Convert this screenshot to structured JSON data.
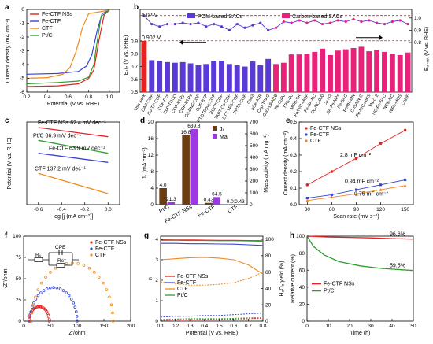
{
  "panels": {
    "a": {
      "letter": "a"
    },
    "b": {
      "letter": "b"
    },
    "c": {
      "letter": "c"
    },
    "d": {
      "letter": "d"
    },
    "e": {
      "letter": "e"
    },
    "f": {
      "letter": "f"
    },
    "g": {
      "letter": "g"
    },
    "h": {
      "letter": "h"
    }
  },
  "chart_data": [
    {
      "panel": "a",
      "type": "line",
      "xlabel": "Potential (V vs. RHE)",
      "ylabel": "Current density (mA cm⁻²)",
      "xlim": [
        0.2,
        1.1
      ],
      "ylim": [
        -6,
        0
      ],
      "xticks": [
        "0.2",
        "0.4",
        "0.6",
        "0.8",
        "1.0"
      ],
      "yticks": [
        "0",
        "-1",
        "-2",
        "-3",
        "-4",
        "-5",
        "-6"
      ],
      "series": [
        {
          "name": "Fe-CTF NSs",
          "color": "#e8201f",
          "x": [
            0.2,
            0.5,
            0.7,
            0.8,
            0.85,
            0.9,
            0.95,
            1.0
          ],
          "y": [
            -5.6,
            -5.55,
            -5.4,
            -5.0,
            -4.4,
            -2.2,
            -0.4,
            -0.05
          ]
        },
        {
          "name": "Fe-CTF",
          "color": "#3845d8",
          "x": [
            0.2,
            0.5,
            0.7,
            0.78,
            0.83,
            0.88,
            0.93,
            1.0
          ],
          "y": [
            -4.7,
            -4.65,
            -4.5,
            -4.1,
            -3.3,
            -1.6,
            -0.3,
            -0.05
          ]
        },
        {
          "name": "CTF",
          "color": "#f08a1c",
          "x": [
            0.2,
            0.4,
            0.55,
            0.62,
            0.68,
            0.74,
            0.8,
            1.0
          ],
          "y": [
            -5.0,
            -4.95,
            -4.7,
            -4.2,
            -3.0,
            -1.3,
            -0.3,
            -0.05
          ]
        },
        {
          "name": "Pt/C",
          "color": "#2f9e2f",
          "x": [
            0.2,
            0.5,
            0.7,
            0.8,
            0.85,
            0.88,
            0.92,
            1.0
          ],
          "y": [
            -5.4,
            -5.3,
            -5.2,
            -4.9,
            -4.0,
            -2.4,
            -0.5,
            -0.05
          ]
        }
      ]
    },
    {
      "panel": "b",
      "type": "bar",
      "legend": [
        "POM-based SACs",
        "Carbon-based SACs"
      ],
      "ylabel_left": "E₁/₂ (V vs. RHE)",
      "ylabel_right": "Eₒₙₛₑₜ (V vs. RHE)",
      "annotations": [
        "1.02 V",
        "0.902 V"
      ],
      "yticks_left": [
        "0.9",
        "0.8",
        "0.7",
        "0.6",
        "0.5"
      ],
      "yticks_right": [
        "1.0",
        "0.9",
        "0.8"
      ],
      "categories": [
        "This work",
        "DAF-COF",
        "Co-TP-COF",
        "COF-Pcs",
        "CoP-TDCO",
        "COF-BTPy",
        "COF-BTPs",
        "Co-PNF/COF",
        "COF-BTP",
        "PT.BTDpyy.COF",
        "BUCT-COF",
        "TAPT-Co-COF",
        "BTT-TFS-COF",
        "PHTA-COF",
        "Coo3",
        "pCe-ATB",
        "Cop-TPAC",
        "CoO-DPACB",
        "Fe-CuPc",
        "TPG-Pc",
        "MOB-SA",
        "Fe/N/C-MOF",
        "Fe-SA-NC",
        "Co-NC-900",
        "Cu-N2",
        "SA-Fe-NPs",
        "Fe-SAC",
        "FeNH-MN",
        "CoSA/N-C",
        "Fe-N/C-HIFS",
        "YN-C-2",
        "NC-Fe-SAC",
        "NiFe-NC",
        "NiFe-MOS",
        "CoZIF"
      ],
      "pom_categories_count": 17,
      "e_half": [
        0.902,
        0.75,
        0.745,
        0.735,
        0.73,
        0.735,
        0.725,
        0.71,
        0.72,
        0.745,
        0.745,
        0.72,
        0.71,
        0.7,
        0.74,
        0.71,
        0.76,
        0.72,
        0.73,
        0.795,
        0.795,
        0.8,
        0.815,
        0.84,
        0.79,
        0.825,
        0.835,
        0.845,
        0.855,
        0.82,
        0.83,
        0.815,
        0.8,
        0.79,
        0.81
      ],
      "e_onset": [
        1.02,
        0.95,
        0.93,
        0.95,
        0.95,
        0.96,
        0.95,
        0.96,
        0.93,
        0.95,
        0.93,
        0.9,
        0.95,
        0.92,
        0.94,
        0.96,
        0.9,
        0.92,
        0.97,
        0.96,
        0.98,
        0.96,
        0.98,
        0.95,
        0.96,
        0.98,
        0.97,
        0.99,
        0.97,
        0.98,
        0.96,
        0.95,
        0.97,
        0.98,
        0.95
      ],
      "colors": {
        "pom": "#5b39d6",
        "carbon": "#e8217a",
        "thiswork": "#e8201f"
      }
    },
    {
      "panel": "c",
      "type": "line",
      "xlabel": "log [j (mA cm⁻²)]",
      "ylabel": "Potential (V vs. RHE)",
      "xlim": [
        -0.7,
        0.1
      ],
      "xticks": [
        "-0.6",
        "-0.4",
        "-0.2",
        "0.0"
      ],
      "series": [
        {
          "name": "Fe-CTF NSs 62.4 mV dec⁻¹",
          "color": "#e8201f",
          "y": [
            0.97,
            0.92
          ]
        },
        {
          "name": "Pt/C 86.9 mV dec⁻¹",
          "color": "#2f9e2f",
          "y": [
            0.9,
            0.83
          ]
        },
        {
          "name": "Fe-CTF 63.9 mV dec⁻¹",
          "color": "#3845d8",
          "y": [
            0.83,
            0.78
          ]
        },
        {
          "name": "CTF 137.2 mV dec⁻¹",
          "color": "#f08a1c",
          "y": [
            0.72,
            0.61
          ]
        }
      ]
    },
    {
      "panel": "d",
      "type": "bar",
      "ylabel_left": "Jₖ (mA cm⁻²)",
      "ylabel_right": "Mass activity (mA mg⁻¹)",
      "categories": [
        "Pt/C",
        "Fe-CTF NSs",
        "Fe-CTF",
        "CTF"
      ],
      "category_colors": [
        "#2f9e2f",
        "#e8201f",
        "#3845d8",
        "#f08a1c"
      ],
      "series": [
        {
          "name": "Jₖ",
          "color": "#6b3d12",
          "values": [
            4.0,
            16.8,
            0.43,
            0.01
          ],
          "labels": [
            "4.0",
            "16.8",
            "0.43",
            "0.01"
          ]
        },
        {
          "name": "Ma",
          "color": "#9a3ae0",
          "values": [
            21.3,
            639.8,
            64.5,
            0.43
          ],
          "labels": [
            "21.3",
            "639.8",
            "64.5",
            "0.43"
          ]
        }
      ],
      "ylim_left": [
        0,
        20
      ],
      "ylim_right": [
        0,
        700
      ],
      "yticks_left": [
        "0",
        "4",
        "8",
        "12",
        "16",
        "20"
      ],
      "yticks_right": [
        "0",
        "100",
        "200",
        "300",
        "400",
        "500",
        "600",
        "700"
      ]
    },
    {
      "panel": "e",
      "type": "scatter",
      "xlabel": "Scan rate (mV s⁻¹)",
      "ylabel": "Current density (mA cm⁻²)",
      "xlim": [
        20,
        160
      ],
      "ylim": [
        0,
        0.5
      ],
      "xticks": [
        "30",
        "60",
        "90",
        "120",
        "150"
      ],
      "yticks": [
        "0.0",
        "0.1",
        "0.2",
        "0.3",
        "0.4",
        "0.5"
      ],
      "x": [
        30,
        60,
        90,
        120,
        150
      ],
      "series": [
        {
          "name": "Fe-CTF NSs",
          "color": "#e8201f",
          "marker": "circle",
          "values": [
            0.12,
            0.2,
            0.28,
            0.37,
            0.45
          ],
          "annotation": "2.8 mF cm⁻²"
        },
        {
          "name": "Fe-CTF",
          "color": "#3845d8",
          "marker": "square",
          "values": [
            0.04,
            0.06,
            0.09,
            0.12,
            0.15
          ],
          "annotation": "0.94 mF cm⁻²"
        },
        {
          "name": "CTF",
          "color": "#f08a1c",
          "marker": "triangle",
          "values": [
            0.025,
            0.045,
            0.065,
            0.09,
            0.115
          ],
          "annotation": "0.75 mF cm⁻²"
        }
      ]
    },
    {
      "panel": "f",
      "type": "scatter",
      "xlabel": "Z'/ohm",
      "ylabel": "-Z''/ohm",
      "xlim": [
        0,
        200
      ],
      "ylim": [
        0,
        100
      ],
      "xticks": [
        "0",
        "50",
        "100",
        "150",
        "200"
      ],
      "yticks": [
        "0",
        "25",
        "50",
        "75",
        "100"
      ],
      "circuit_labels": [
        "CPE",
        "Rₛ",
        "Rᴄᴛ"
      ],
      "series": [
        {
          "name": "Fe-CTF NSs",
          "color": "#e8201f",
          "marker": "circle",
          "arc": [
            10,
            48
          ]
        },
        {
          "name": "Fe-CTF",
          "color": "#3845d8",
          "marker": "circle",
          "arc": [
            12,
            100
          ]
        },
        {
          "name": "CTF",
          "color": "#f08a1c",
          "marker": "circle",
          "arc": [
            15,
            167
          ]
        }
      ]
    },
    {
      "panel": "g",
      "type": "line",
      "xlabel": "Potential (V vs. RHE)",
      "ylabel": "n",
      "ylabel_right": "H₂O₂ yield (%)",
      "xlim": [
        0.1,
        0.8
      ],
      "xticks": [
        "0.1",
        "0.2",
        "0.3",
        "0.4",
        "0.5",
        "0.6",
        "0.7",
        "0.8"
      ],
      "yticks": [
        "0",
        "1",
        "2",
        "3",
        "4"
      ],
      "yticks_right": [
        "0",
        "20",
        "40",
        "60",
        "80",
        "100"
      ],
      "series": [
        {
          "name": "Fe-CTF NSs",
          "color": "#e8201f",
          "n": [
            3.98,
            3.97,
            3.97,
            3.96,
            3.95,
            3.95,
            3.94,
            3.93
          ],
          "h2o2": [
            1,
            1.5,
            1.5,
            2,
            2,
            2.5,
            3,
            3.5
          ]
        },
        {
          "name": "Fe-CTF",
          "color": "#3845d8",
          "n": [
            3.8,
            3.8,
            3.78,
            3.78,
            3.77,
            3.76,
            3.73,
            3.7
          ],
          "h2o2": [
            5,
            6,
            6,
            7,
            7,
            8,
            9,
            10
          ]
        },
        {
          "name": "CTF",
          "color": "#f08a1c",
          "n": [
            3.0,
            3.05,
            3.1,
            3.12,
            3.08,
            3.0,
            2.75,
            2.3
          ],
          "h2o2": [
            48,
            46,
            44,
            44,
            45,
            47,
            52,
            60
          ]
        },
        {
          "name": "Pt/C",
          "color": "#2f9e2f",
          "n": [
            3.95,
            3.95,
            3.94,
            3.94,
            3.93,
            3.93,
            3.92,
            3.9
          ],
          "h2o2": [
            2,
            2.5,
            3,
            3,
            3,
            3.5,
            4,
            4
          ]
        }
      ]
    },
    {
      "panel": "h",
      "type": "line",
      "xlabel": "Time (h)",
      "ylabel": "Relative current (%)",
      "xlim": [
        0,
        50
      ],
      "ylim": [
        0,
        100
      ],
      "xticks": [
        "0",
        "10",
        "20",
        "30",
        "40",
        "50"
      ],
      "yticks": [
        "0",
        "20",
        "40",
        "60",
        "80",
        "100"
      ],
      "annotations": [
        "96.6%",
        "59.5%"
      ],
      "series": [
        {
          "name": "Fe-CTF NSs",
          "color": "#e8201f",
          "x": [
            0,
            10,
            20,
            30,
            40,
            50
          ],
          "y": [
            100,
            99,
            98.5,
            98,
            97,
            96.6
          ]
        },
        {
          "name": "Pt/C",
          "color": "#2f9e2f",
          "x": [
            0,
            3,
            8,
            15,
            25,
            35,
            50
          ],
          "y": [
            100,
            88,
            78,
            70,
            65,
            62,
            59.5
          ]
        }
      ]
    }
  ]
}
